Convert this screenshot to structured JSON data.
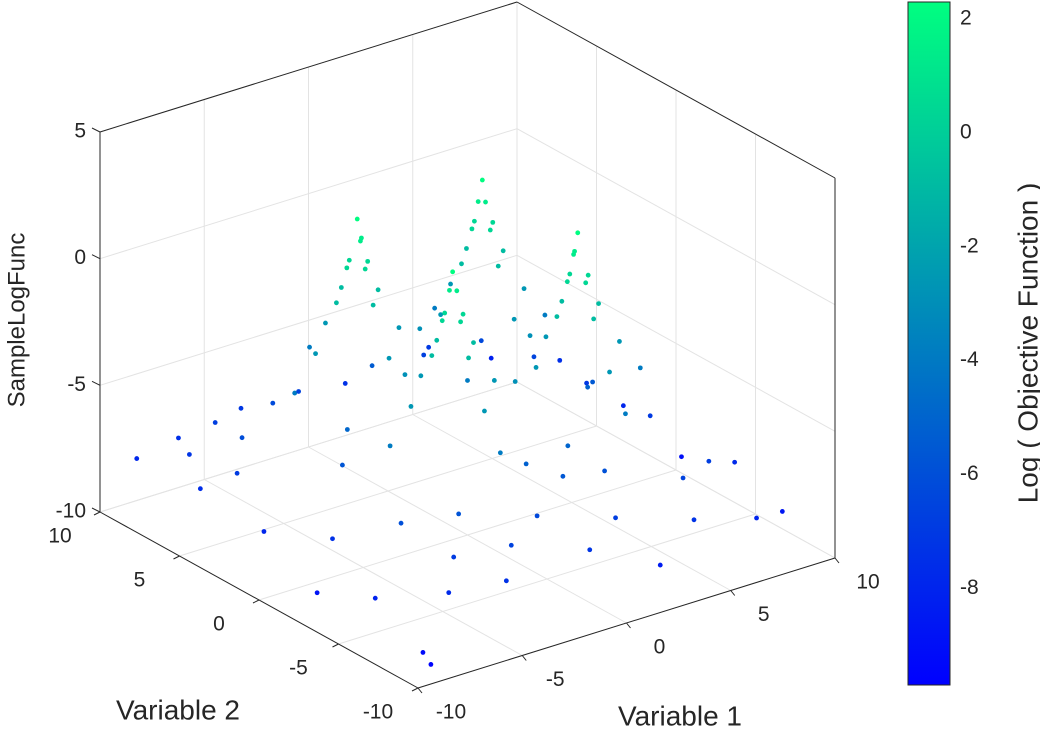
{
  "chart_data": {
    "type": "scatter3d",
    "xlabel": "Variable 1",
    "ylabel": "Variable 2",
    "zlabel": "SampleLogFunc",
    "colorbar_label": "Log ( Objective Function )",
    "xlim": [
      -10,
      10
    ],
    "ylim": [
      -10,
      10
    ],
    "zlim": [
      -10,
      5
    ],
    "xticks": [
      -10,
      -5,
      0,
      5,
      10
    ],
    "yticks": [
      -10,
      -5,
      0,
      5,
      10
    ],
    "zticks": [
      -10,
      -5,
      0,
      5
    ],
    "clim": [
      -9.7,
      2.3
    ],
    "cticks": [
      -8,
      -6,
      -4,
      -2,
      0,
      2
    ],
    "colormap": [
      "#0000ff",
      "#00ff80"
    ],
    "grid": true,
    "x": [
      -3,
      -2.8,
      -3,
      -2.5,
      -3.5,
      -3,
      -3,
      -2,
      -4,
      -3,
      -3,
      -1,
      -5,
      -3,
      -3,
      3,
      2.8,
      3,
      2.5,
      3.5,
      3,
      3,
      2,
      4,
      3,
      3,
      1,
      5,
      3,
      3,
      3,
      2.8,
      3,
      2.5,
      3.5,
      3,
      3,
      2,
      4,
      3,
      3,
      1,
      5,
      3,
      3,
      -3,
      -2.8,
      -3,
      -2.5,
      -3.5,
      -3,
      -3,
      -2,
      -4,
      -3,
      -3,
      -1,
      -5,
      -3,
      -3,
      0,
      -6,
      -3,
      6,
      3,
      6,
      3,
      -6,
      -3,
      0,
      0,
      3,
      -3,
      -9,
      -8,
      -7,
      -9,
      -6,
      -9,
      -8,
      -9,
      -7,
      -5,
      -9,
      -6,
      -4,
      -1,
      1,
      4,
      7,
      9,
      9,
      8,
      9,
      9,
      8,
      5,
      1,
      -2,
      -4,
      6,
      7,
      -7,
      -7,
      7,
      0,
      0,
      -6,
      6,
      -2,
      2,
      -5,
      5,
      -8,
      8,
      -4,
      4,
      -9.5,
      2,
      9.5,
      -1,
      1,
      -5,
      5,
      -9
    ],
    "y": [
      3,
      3,
      2.8,
      3,
      3,
      3.5,
      2.5,
      3,
      3,
      4,
      2,
      3,
      3,
      5,
      1,
      3,
      3,
      2.8,
      3,
      3,
      3.5,
      2.5,
      3,
      3,
      4,
      2,
      3,
      3,
      5,
      1,
      -3,
      -3,
      -2.8,
      -3,
      -3,
      -2.5,
      -3.5,
      -3,
      -3,
      -2,
      -4,
      -3,
      -3,
      -1,
      -5,
      -3,
      -3,
      -2.8,
      -3,
      -3,
      -2.5,
      -3.5,
      -3,
      -3,
      -2,
      -4,
      -3,
      -3,
      -1,
      -5,
      0,
      3,
      6,
      3,
      6,
      -3,
      -6,
      -3,
      -6,
      3,
      -3,
      0,
      0,
      9,
      7,
      9,
      5,
      8,
      1,
      -2,
      -6,
      -8,
      -9,
      -9,
      -7,
      -8,
      -9,
      -8,
      -9,
      -9,
      -8,
      -5,
      -1,
      2,
      6,
      9,
      9,
      9,
      8,
      9,
      7,
      5,
      5,
      -5,
      -6,
      -6,
      6,
      0,
      0,
      -7,
      -6,
      -6,
      -7,
      4,
      3,
      7,
      8,
      -3,
      -9.5,
      -1,
      -5,
      -5,
      1,
      -1,
      -9.5
    ],
    "z": [
      2.2,
      1.4,
      1.4,
      0.4,
      0.4,
      0.4,
      0.4,
      -0.85,
      -0.85,
      -0.85,
      -0.85,
      -2.6,
      -2.6,
      -2.6,
      -2.6,
      2.2,
      1.4,
      1.4,
      0.4,
      0.4,
      0.4,
      0.4,
      -0.85,
      -0.85,
      -0.85,
      -0.85,
      -2.6,
      -2.6,
      -2.6,
      -2.6,
      2.2,
      1.4,
      1.4,
      0.4,
      0.4,
      0.4,
      0.4,
      -0.85,
      -0.85,
      -0.85,
      -0.85,
      -2.6,
      -2.6,
      -2.6,
      -2.6,
      2.2,
      1.4,
      1.4,
      0.4,
      0.4,
      0.4,
      0.4,
      -0.85,
      -0.85,
      -0.85,
      -0.85,
      -2.6,
      -2.6,
      -2.6,
      -2.6,
      -3.9,
      -3.9,
      -3.9,
      -3.9,
      -3.9,
      -3.9,
      -3.9,
      -3.9,
      -3.9,
      -2.9,
      -2.9,
      -2.9,
      -2.9,
      -7.8,
      -7.2,
      -7.5,
      -7.6,
      -6.8,
      -7.9,
      -7.4,
      -8.1,
      -7.7,
      -7.4,
      -9.2,
      -6.9,
      -6.6,
      -7.2,
      -6.8,
      -7.3,
      -8.0,
      -8.6,
      -7.7,
      -7.0,
      -7.9,
      -7.5,
      -8.2,
      -7.0,
      -7.4,
      -6.6,
      -7.1,
      -6.3,
      -6.5,
      -6.1,
      -6.0,
      -6.8,
      -5.6,
      -5.4,
      -5.7,
      -5.5,
      -6.3,
      -5.9,
      -5.8,
      -6.6,
      -6.9,
      -7.1,
      -6.2,
      -6.7,
      -8.8,
      -8.4,
      -9.0,
      -5.2,
      -5.0,
      -4.9,
      -5.1,
      -9.5
    ]
  }
}
